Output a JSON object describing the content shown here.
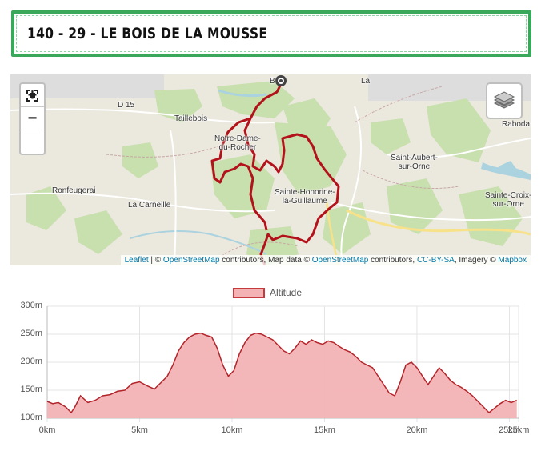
{
  "header": {
    "title": "140 - 29 - LE BOIS DE LA MOUSSE"
  },
  "map": {
    "zoom_in_label": "+",
    "zoom_out_label": "−",
    "labels": {
      "d15": "D 15",
      "taillebois": "Taillebois",
      "notre_dame": "Notre-Dame-\ndu-Rocher",
      "ronfeugerai": "Ronfeugerai",
      "la_carneille": "La Carneille",
      "sainte_honorine": "Sainte-Honorine-\nla-Guillaume",
      "saint_aubert": "Saint-Aubert-\nsur-Orne",
      "sainte_croix": "Sainte-Croix-\nsur-Orne",
      "raboda": "Raboda",
      "b_top": "B",
      "la_top": "La"
    },
    "attribution": {
      "leaflet": "Leaflet",
      "sep1": " | © ",
      "osm1": "OpenStreetMap",
      "text1": " contributors, Map data © ",
      "osm2": "OpenStreetMap",
      "text2": " contributors, ",
      "license": "CC-BY-SA",
      "text3": ", Imagery © ",
      "mapbox": "Mapbox"
    },
    "colors": {
      "route": "#b3121b",
      "forest": "#c8dfae",
      "water": "#aad3df"
    }
  },
  "chart_data": {
    "type": "area",
    "title": "",
    "legend": {
      "label": "Altitude",
      "position": "top"
    },
    "xlabel": "",
    "ylabel": "",
    "xlim": [
      0,
      25.5
    ],
    "ylim": [
      100,
      300
    ],
    "x_ticks": [
      "0km",
      "5km",
      "10km",
      "15km",
      "20km",
      "25km",
      "25km"
    ],
    "x_tick_values": [
      0,
      5,
      10,
      15,
      20,
      25,
      25.5
    ],
    "y_ticks": [
      "300m",
      "250m",
      "200m",
      "150m",
      "100m"
    ],
    "y_tick_values": [
      300,
      250,
      200,
      150,
      100
    ],
    "grid": true,
    "colors": {
      "fill": "#f3b3b5",
      "line": "#b3242a"
    },
    "series": [
      {
        "name": "Altitude",
        "x": [
          0,
          0.3,
          0.6,
          1.0,
          1.3,
          1.5,
          1.8,
          2.2,
          2.6,
          3.0,
          3.4,
          3.8,
          4.2,
          4.6,
          5.0,
          5.4,
          5.8,
          6.2,
          6.5,
          6.8,
          7.1,
          7.4,
          7.7,
          8.0,
          8.3,
          8.6,
          8.9,
          9.2,
          9.5,
          9.8,
          10.1,
          10.4,
          10.7,
          11.0,
          11.3,
          11.6,
          11.9,
          12.2,
          12.5,
          12.8,
          13.1,
          13.4,
          13.7,
          14.0,
          14.3,
          14.6,
          14.9,
          15.2,
          15.5,
          15.8,
          16.1,
          16.4,
          16.7,
          17.0,
          17.3,
          17.6,
          17.9,
          18.2,
          18.5,
          18.8,
          19.1,
          19.4,
          19.7,
          20.0,
          20.3,
          20.6,
          20.9,
          21.2,
          21.5,
          21.8,
          22.1,
          22.4,
          22.7,
          23.0,
          23.3,
          23.6,
          23.9,
          24.2,
          24.5,
          24.8,
          25.1,
          25.4
        ],
        "values": [
          130,
          126,
          128,
          120,
          110,
          120,
          140,
          128,
          132,
          140,
          142,
          148,
          150,
          162,
          165,
          158,
          152,
          165,
          175,
          195,
          220,
          235,
          245,
          250,
          252,
          248,
          245,
          225,
          195,
          175,
          185,
          215,
          235,
          248,
          252,
          250,
          245,
          240,
          230,
          220,
          215,
          225,
          238,
          232,
          240,
          235,
          232,
          238,
          235,
          228,
          222,
          218,
          210,
          200,
          195,
          190,
          175,
          160,
          145,
          140,
          165,
          195,
          200,
          190,
          175,
          160,
          175,
          190,
          180,
          168,
          160,
          155,
          148,
          140,
          130,
          120,
          110,
          118,
          126,
          132,
          128,
          132
        ]
      }
    ]
  }
}
